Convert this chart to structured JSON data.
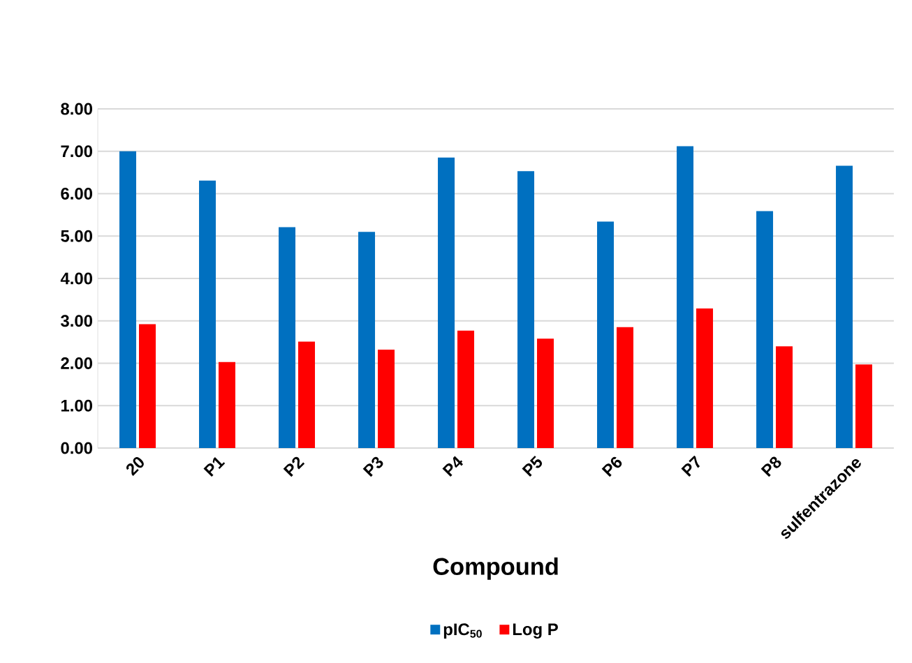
{
  "chart_data": {
    "type": "bar",
    "xlabel": "Compound",
    "categories": [
      "20",
      "P1",
      "P2",
      "P3",
      "P4",
      "P5",
      "P6",
      "P7",
      "P8",
      "sulfentrazone"
    ],
    "series": [
      {
        "name": "pIC$_{50}$",
        "color": "#0070c0",
        "values": [
          7.0,
          6.31,
          5.21,
          5.1,
          6.85,
          6.53,
          5.34,
          7.12,
          5.59,
          6.66
        ]
      },
      {
        "name": "Log P",
        "color": "#ff0000",
        "values": [
          2.92,
          2.03,
          2.51,
          2.32,
          2.77,
          2.58,
          2.85,
          3.29,
          2.4,
          1.97
        ]
      }
    ],
    "ylim": [
      0,
      8
    ],
    "yticks": [
      {
        "value": 0,
        "label": "0.00"
      },
      {
        "value": 1,
        "label": "1.00"
      },
      {
        "value": 2,
        "label": "2.00"
      },
      {
        "value": 3,
        "label": "3.00"
      },
      {
        "value": 4,
        "label": "4.00"
      },
      {
        "value": 5,
        "label": "5.00"
      },
      {
        "value": 6,
        "label": "6.00"
      },
      {
        "value": 7,
        "label": "7.00"
      },
      {
        "value": 8,
        "label": "8.00"
      }
    ],
    "grid": "y",
    "legend": "bottom"
  }
}
